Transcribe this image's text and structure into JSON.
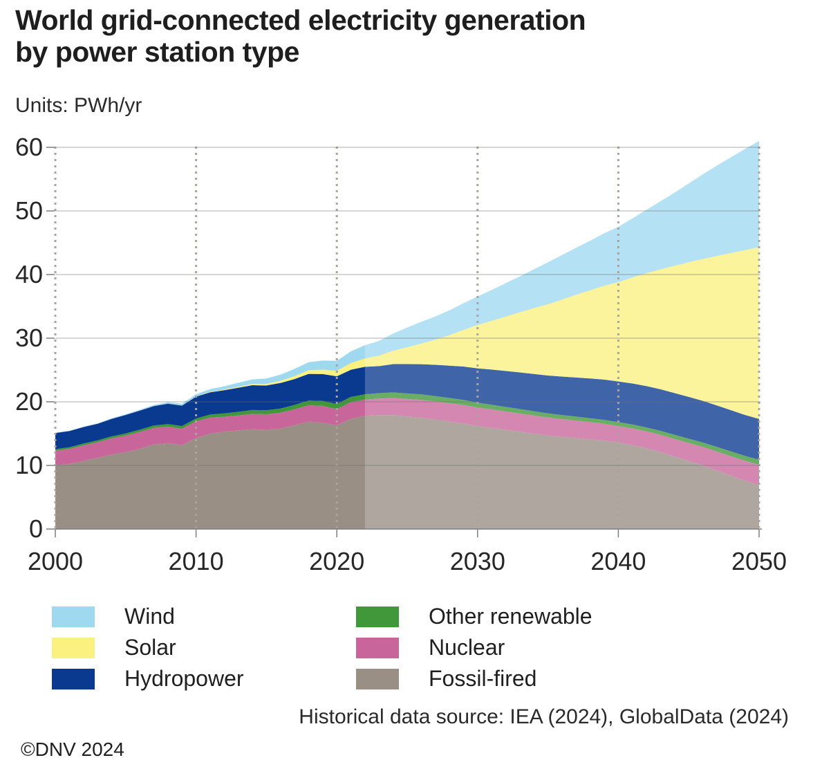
{
  "header": {
    "title_line1": "World grid-connected electricity generation",
    "title_line2": "by power station type",
    "units_label": "Units: PWh/yr"
  },
  "footer": {
    "source": "Historical data source: IEA (2024), GlobalData (2024)",
    "copyright": "©DNV 2024"
  },
  "legend": [
    {
      "id": "wind",
      "label": "Wind",
      "color": "#9fd9f0"
    },
    {
      "id": "solar",
      "label": "Solar",
      "color": "#fbf180"
    },
    {
      "id": "hydropower",
      "label": "Hydropower",
      "color": "#0a3a90"
    },
    {
      "id": "other-renewable",
      "label": "Other renewable",
      "color": "#41983a"
    },
    {
      "id": "nuclear",
      "label": "Nuclear",
      "color": "#c8669c"
    },
    {
      "id": "fossil-fired",
      "label": "Fossil-fired",
      "color": "#998f85"
    }
  ],
  "chart_data": {
    "type": "area",
    "stacked": true,
    "title": "World grid-connected electricity generation by power station type",
    "xlabel": "",
    "ylabel": "PWh/yr",
    "ylim": [
      0,
      61
    ],
    "yticks": [
      0,
      10,
      20,
      30,
      40,
      50,
      60
    ],
    "xticks": [
      2000,
      2010,
      2020,
      2030,
      2040,
      2050
    ],
    "grid": true,
    "legend_position": "bottom",
    "forecast_start": 2022,
    "forecast_overlay_white_opacity": 0.22,
    "x": [
      2000,
      2001,
      2002,
      2003,
      2004,
      2005,
      2006,
      2007,
      2008,
      2009,
      2010,
      2011,
      2012,
      2013,
      2014,
      2015,
      2016,
      2017,
      2018,
      2019,
      2020,
      2021,
      2022,
      2023,
      2024,
      2025,
      2026,
      2027,
      2028,
      2029,
      2030,
      2031,
      2032,
      2033,
      2034,
      2035,
      2036,
      2037,
      2038,
      2039,
      2040,
      2041,
      2042,
      2043,
      2044,
      2045,
      2046,
      2047,
      2048,
      2049,
      2050
    ],
    "series": [
      {
        "id": "fossil-fired",
        "name": "Fossil-fired",
        "color": "#998f85",
        "values": [
          10.0,
          10.25,
          10.7,
          11.2,
          11.7,
          12.1,
          12.6,
          13.3,
          13.5,
          13.2,
          14.3,
          15.0,
          15.3,
          15.5,
          15.7,
          15.6,
          15.8,
          16.3,
          16.9,
          16.7,
          16.3,
          17.3,
          17.8,
          17.9,
          17.9,
          17.7,
          17.5,
          17.2,
          16.9,
          16.6,
          16.2,
          15.9,
          15.6,
          15.3,
          15.0,
          14.7,
          14.5,
          14.3,
          14.1,
          13.9,
          13.6,
          13.2,
          12.7,
          12.1,
          11.4,
          10.7,
          10.0,
          9.2,
          8.4,
          7.6,
          6.9
        ]
      },
      {
        "id": "nuclear",
        "name": "Nuclear",
        "color": "#c8669c",
        "values": [
          2.3,
          2.35,
          2.45,
          2.45,
          2.55,
          2.6,
          2.66,
          2.6,
          2.6,
          2.56,
          2.63,
          2.52,
          2.35,
          2.36,
          2.41,
          2.44,
          2.48,
          2.51,
          2.56,
          2.66,
          2.55,
          2.65,
          2.55,
          2.6,
          2.7,
          2.75,
          2.8,
          2.85,
          2.88,
          2.9,
          2.9,
          2.9,
          2.88,
          2.86,
          2.84,
          2.82,
          2.78,
          2.74,
          2.7,
          2.65,
          2.6,
          2.62,
          2.65,
          2.7,
          2.76,
          2.82,
          2.9,
          2.97,
          3.05,
          3.12,
          3.2
        ]
      },
      {
        "id": "other-renewable",
        "name": "Other renewable",
        "color": "#41983a",
        "values": [
          0.25,
          0.26,
          0.28,
          0.29,
          0.31,
          0.33,
          0.35,
          0.37,
          0.4,
          0.42,
          0.45,
          0.48,
          0.52,
          0.56,
          0.6,
          0.63,
          0.66,
          0.7,
          0.74,
          0.78,
          0.8,
          0.82,
          0.84,
          0.86,
          0.87,
          0.87,
          0.86,
          0.84,
          0.82,
          0.79,
          0.76,
          0.74,
          0.72,
          0.7,
          0.68,
          0.66,
          0.64,
          0.63,
          0.62,
          0.61,
          0.6,
          0.61,
          0.62,
          0.64,
          0.66,
          0.68,
          0.7,
          0.73,
          0.75,
          0.78,
          0.8
        ]
      },
      {
        "id": "hydropower",
        "name": "Hydropower",
        "color": "#0a3a90",
        "values": [
          2.55,
          2.55,
          2.6,
          2.61,
          2.75,
          2.9,
          3.0,
          3.05,
          3.2,
          3.22,
          3.44,
          3.5,
          3.65,
          3.8,
          3.9,
          3.9,
          4.03,
          4.07,
          4.19,
          4.22,
          4.36,
          4.27,
          4.31,
          4.25,
          4.45,
          4.6,
          4.75,
          4.92,
          5.08,
          5.25,
          5.4,
          5.53,
          5.65,
          5.76,
          5.86,
          5.95,
          6.05,
          6.15,
          6.25,
          6.33,
          6.4,
          6.45,
          6.5,
          6.53,
          6.55,
          6.57,
          6.55,
          6.52,
          6.48,
          6.44,
          6.4
        ]
      },
      {
        "id": "solar",
        "name": "Solar",
        "color": "#fbf180",
        "values": [
          0,
          0,
          0,
          0.01,
          0.01,
          0.01,
          0.01,
          0.01,
          0.01,
          0.02,
          0.03,
          0.06,
          0.1,
          0.13,
          0.2,
          0.26,
          0.33,
          0.45,
          0.57,
          0.7,
          0.85,
          1.05,
          1.3,
          1.65,
          2.1,
          2.65,
          3.25,
          3.95,
          4.8,
          5.75,
          6.8,
          7.65,
          8.55,
          9.45,
          10.35,
          11.2,
          12.1,
          13.0,
          13.85,
          14.75,
          15.6,
          16.65,
          17.75,
          18.85,
          20.0,
          21.15,
          22.3,
          23.5,
          24.7,
          25.9,
          27.0
        ]
      },
      {
        "id": "wind",
        "name": "Wind",
        "color": "#9fd9f0",
        "values": [
          0.03,
          0.04,
          0.05,
          0.06,
          0.08,
          0.1,
          0.13,
          0.17,
          0.22,
          0.28,
          0.34,
          0.44,
          0.52,
          0.64,
          0.71,
          0.83,
          0.96,
          1.14,
          1.27,
          1.42,
          1.59,
          1.85,
          2.1,
          2.3,
          2.7,
          3.1,
          3.4,
          3.65,
          3.9,
          4.2,
          4.5,
          4.85,
          5.25,
          5.65,
          6.1,
          6.6,
          7.0,
          7.4,
          7.8,
          8.25,
          8.7,
          9.3,
          9.95,
          10.7,
          11.5,
          12.4,
          13.3,
          14.2,
          15.05,
          15.9,
          16.7
        ]
      }
    ]
  }
}
